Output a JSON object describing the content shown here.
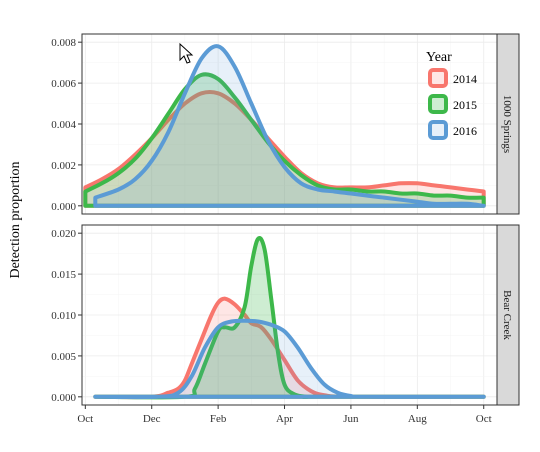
{
  "chart_data": {
    "type": "area",
    "ylabel": "Detection proportion",
    "x_ticks": [
      "Oct",
      "Dec",
      "Feb",
      "Apr",
      "Jun",
      "Aug",
      "Oct"
    ],
    "legend": {
      "title": "Year",
      "position": "top-right-inside"
    },
    "grid": true,
    "colors": {
      "2014": "#F8766D",
      "2015": "#3DB84A",
      "2016": "#5B9BD5"
    },
    "panels": [
      {
        "strip": "1000 Springs",
        "ylim": [
          0,
          0.008
        ],
        "y_ticks": [
          "0.000",
          "0.002",
          "0.004",
          "0.006",
          "0.008"
        ],
        "series": [
          {
            "name": "2014",
            "x": [
              0,
              0.5,
              1,
              1.5,
              2,
              2.5,
              3,
              3.5,
              4,
              4.5,
              5,
              5.5,
              6,
              6.5,
              7,
              7.5,
              8,
              8.5,
              9,
              9.5,
              10,
              10.5,
              11,
              11.5,
              12
            ],
            "y": [
              0.0009,
              0.0013,
              0.0018,
              0.0025,
              0.0033,
              0.0042,
              0.005,
              0.0055,
              0.0055,
              0.005,
              0.0042,
              0.0033,
              0.0024,
              0.0016,
              0.0011,
              0.0009,
              0.0009,
              0.0009,
              0.001,
              0.0011,
              0.0011,
              0.001,
              0.0009,
              0.0008,
              0.0007
            ]
          },
          {
            "name": "2015",
            "x": [
              0,
              0.5,
              1,
              1.5,
              2,
              2.5,
              3,
              3.5,
              4,
              4.5,
              5,
              5.5,
              6,
              6.5,
              7,
              7.5,
              8,
              8.5,
              9,
              9.5,
              10,
              10.5,
              11,
              11.5,
              12
            ],
            "y": [
              0.0007,
              0.0011,
              0.0016,
              0.0023,
              0.0033,
              0.0045,
              0.0057,
              0.0064,
              0.0062,
              0.0053,
              0.0042,
              0.0031,
              0.0022,
              0.0015,
              0.001,
              0.0008,
              0.0008,
              0.0007,
              0.0007,
              0.0006,
              0.0006,
              0.0005,
              0.0005,
              0.0004,
              0.0004
            ]
          },
          {
            "name": "2016",
            "x": [
              0.3,
              1,
              1.5,
              2,
              2.5,
              3,
              3.5,
              4,
              4.5,
              5,
              5.5,
              6,
              6.5,
              7,
              7.5,
              8,
              8.5,
              9,
              9.5,
              10,
              10.5,
              11,
              11.5,
              12
            ],
            "y": [
              0.0004,
              0.0008,
              0.0013,
              0.0022,
              0.0036,
              0.0055,
              0.0072,
              0.0078,
              0.0068,
              0.005,
              0.0032,
              0.0019,
              0.0011,
              0.0008,
              0.0007,
              0.0006,
              0.0005,
              0.0004,
              0.0003,
              0.0002,
              0.0001,
              0.0001,
              0.0001,
              0.0
            ]
          }
        ]
      },
      {
        "strip": "Bear Creek",
        "ylim": [
          0,
          0.02
        ],
        "y_ticks": [
          "0.000",
          "0.005",
          "0.010",
          "0.015",
          "0.020"
        ],
        "series": [
          {
            "name": "2014",
            "x": [
              0.3,
              2,
              2.5,
              2.8,
              3,
              3.2,
              3.5,
              3.8,
              4,
              4.2,
              4.5,
              4.8,
              5,
              5.3,
              5.6,
              6,
              6.4,
              6.8,
              7.2,
              8,
              12
            ],
            "y": [
              0,
              0,
              0.0005,
              0.001,
              0.002,
              0.004,
              0.007,
              0.01,
              0.0115,
              0.012,
              0.0113,
              0.01,
              0.009,
              0.0085,
              0.007,
              0.0045,
              0.002,
              0.0007,
              0.0002,
              0,
              0
            ]
          },
          {
            "name": "2015",
            "x": [
              0.3,
              3,
              3.3,
              3.6,
              4,
              4.2,
              4.5,
              4.8,
              5,
              5.2,
              5.4,
              5.6,
              5.8,
              6,
              6.3,
              6.7,
              7,
              12
            ],
            "y": [
              0,
              0,
              0.001,
              0.004,
              0.008,
              0.0085,
              0.0085,
              0.011,
              0.016,
              0.0193,
              0.018,
              0.012,
              0.0055,
              0.0015,
              0.0003,
              0,
              0,
              0
            ]
          },
          {
            "name": "2016",
            "x": [
              0.3,
              2.2,
              2.8,
              3.2,
              3.6,
              4,
              4.4,
              4.8,
              5.2,
              5.6,
              6,
              6.4,
              6.8,
              7.2,
              7.6,
              8,
              8.5,
              12
            ],
            "y": [
              0,
              0,
              0.0005,
              0.0025,
              0.006,
              0.0085,
              0.0092,
              0.0093,
              0.0092,
              0.0088,
              0.008,
              0.006,
              0.0035,
              0.0015,
              0.0005,
              0.0001,
              0,
              0
            ]
          }
        ]
      }
    ]
  }
}
